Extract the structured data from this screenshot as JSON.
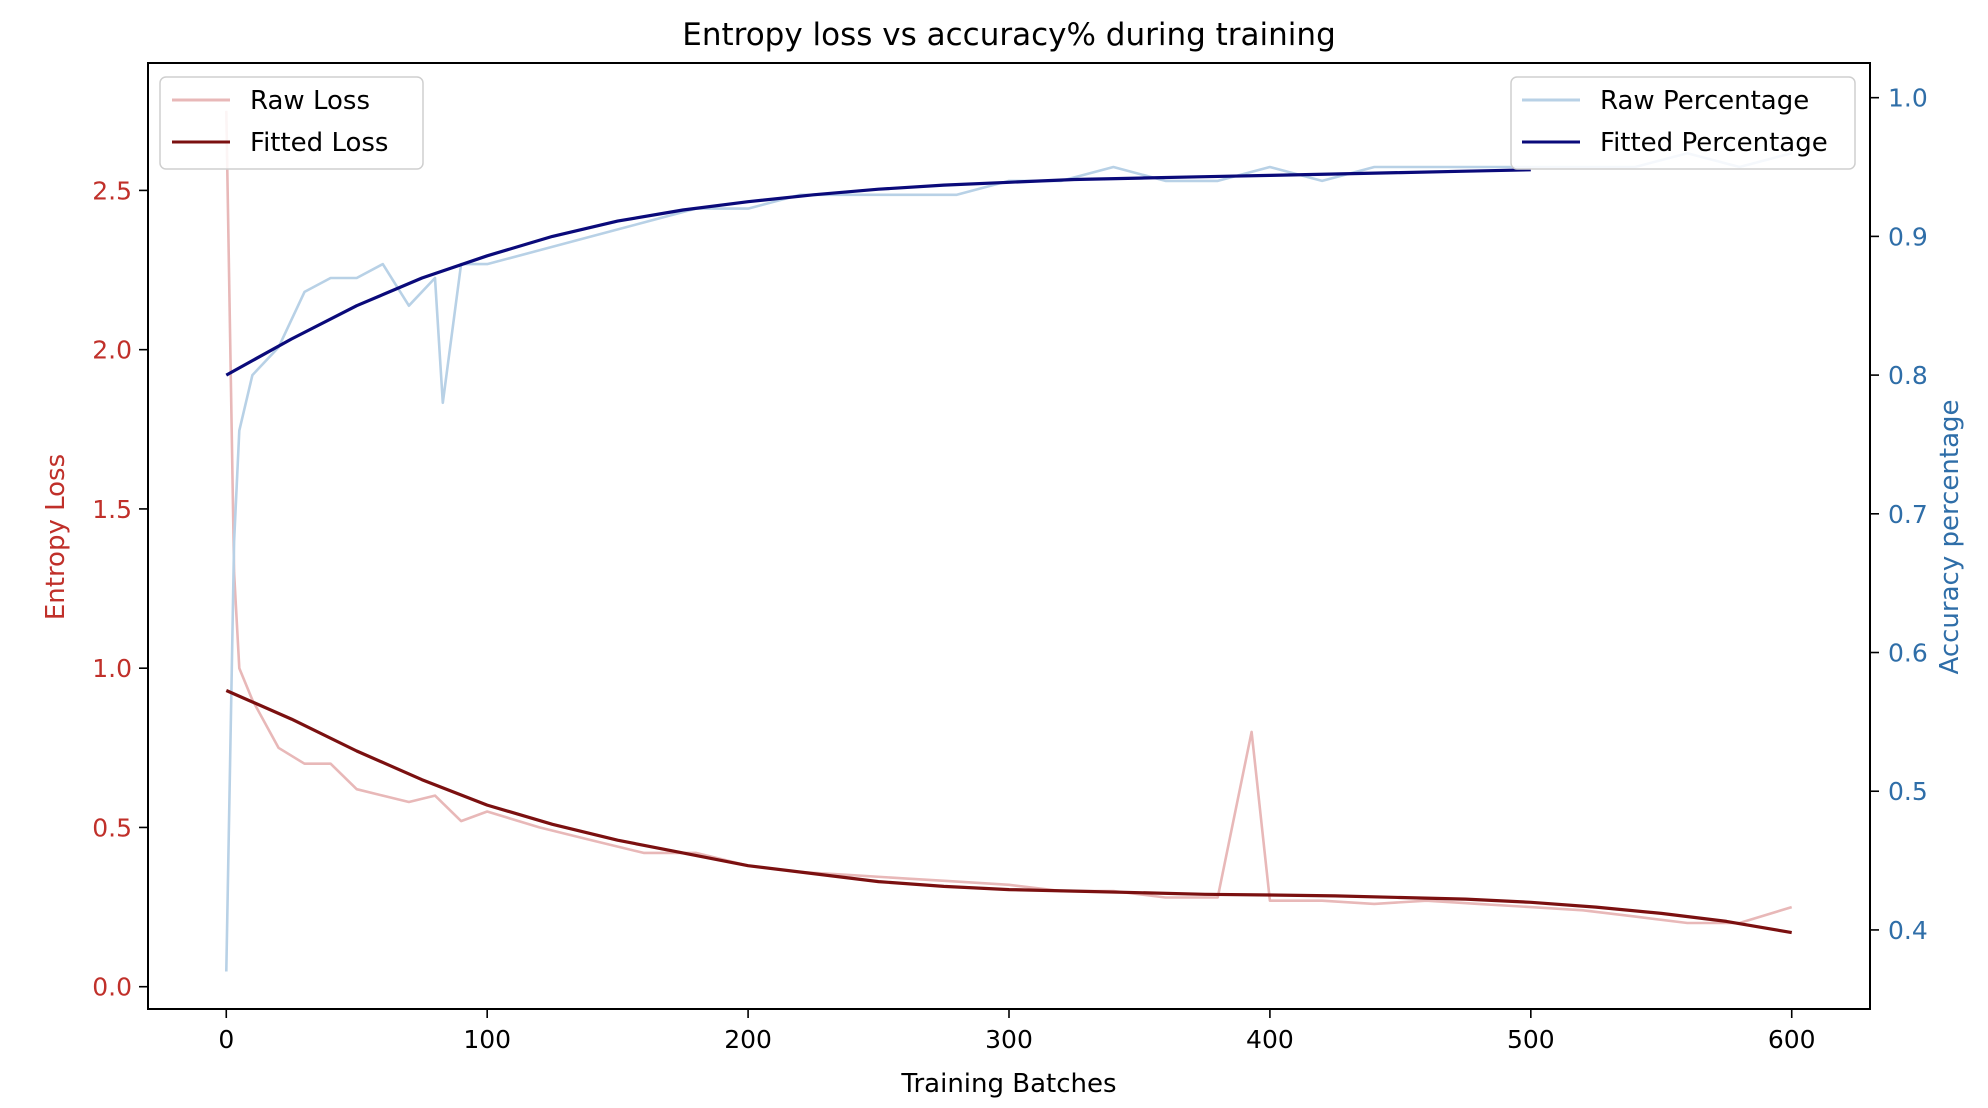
{
  "chart_data": {
    "type": "line",
    "title": "Entropy loss vs accuracy% during training",
    "xlabel": "Training Batches",
    "xlim": [
      -30,
      630
    ],
    "x_ticks": [
      "0",
      "100",
      "200",
      "300",
      "400",
      "500",
      "600"
    ],
    "left_axis": {
      "label": "Entropy Loss",
      "ylim": [
        -0.07,
        2.9
      ],
      "ticks": [
        "0.0",
        "0.5",
        "1.0",
        "1.5",
        "2.0",
        "2.5"
      ],
      "color": "#c0302a"
    },
    "right_axis": {
      "label": "Accuracy percentage",
      "ylim": [
        0.343,
        1.025
      ],
      "ticks": [
        "0.4",
        "0.5",
        "0.6",
        "0.7",
        "0.8",
        "0.9",
        "1.0"
      ],
      "color": "#2f6ea8"
    },
    "legend_left": {
      "position": "top-left",
      "entries": [
        "Raw Loss",
        "Fitted Loss"
      ]
    },
    "legend_right": {
      "position": "top-right",
      "entries": [
        "Raw Percentage",
        "Fitted Percentage"
      ]
    },
    "series": [
      {
        "name": "Raw Loss",
        "axis": "left",
        "color": "#e8b8b8",
        "x": [
          0,
          3,
          5,
          10,
          20,
          30,
          40,
          50,
          60,
          70,
          80,
          90,
          100,
          120,
          140,
          160,
          180,
          200,
          220,
          240,
          260,
          280,
          300,
          320,
          340,
          360,
          380,
          393,
          400,
          420,
          440,
          460,
          480,
          500,
          520,
          540,
          560,
          580,
          600
        ],
        "y": [
          2.75,
          1.3,
          1.0,
          0.9,
          0.75,
          0.7,
          0.7,
          0.62,
          0.6,
          0.58,
          0.6,
          0.52,
          0.55,
          0.5,
          0.46,
          0.42,
          0.42,
          0.38,
          0.36,
          0.35,
          0.34,
          0.33,
          0.32,
          0.3,
          0.3,
          0.28,
          0.28,
          0.8,
          0.27,
          0.27,
          0.26,
          0.27,
          0.26,
          0.25,
          0.24,
          0.22,
          0.2,
          0.2,
          0.25
        ]
      },
      {
        "name": "Fitted Loss",
        "axis": "left",
        "color": "#7b1010",
        "x": [
          0,
          25,
          50,
          75,
          100,
          125,
          150,
          175,
          200,
          225,
          250,
          275,
          300,
          325,
          350,
          375,
          400,
          425,
          450,
          475,
          500,
          525,
          550,
          575,
          600
        ],
        "y": [
          0.93,
          0.84,
          0.74,
          0.65,
          0.57,
          0.51,
          0.46,
          0.42,
          0.38,
          0.355,
          0.33,
          0.315,
          0.305,
          0.3,
          0.295,
          0.29,
          0.288,
          0.285,
          0.28,
          0.275,
          0.265,
          0.25,
          0.23,
          0.205,
          0.17
        ]
      },
      {
        "name": "Raw Percentage",
        "axis": "right",
        "color": "#b8d1e6",
        "x": [
          0,
          3,
          5,
          10,
          20,
          30,
          40,
          50,
          60,
          70,
          80,
          83,
          90,
          100,
          120,
          140,
          160,
          180,
          200,
          220,
          240,
          260,
          280,
          300,
          320,
          340,
          360,
          380,
          400,
          420,
          440,
          460,
          480,
          500,
          520,
          540,
          560,
          580,
          600
        ],
        "y": [
          0.37,
          0.68,
          0.76,
          0.8,
          0.82,
          0.86,
          0.87,
          0.87,
          0.88,
          0.85,
          0.87,
          0.78,
          0.88,
          0.88,
          0.89,
          0.9,
          0.91,
          0.92,
          0.92,
          0.93,
          0.93,
          0.93,
          0.93,
          0.94,
          0.94,
          0.95,
          0.94,
          0.94,
          0.95,
          0.94,
          0.95,
          0.95,
          0.95,
          0.95,
          0.95,
          0.95,
          0.96,
          0.95,
          0.96
        ]
      },
      {
        "name": "Fitted Percentage",
        "axis": "right",
        "color": "#0a0a7a",
        "x": [
          0,
          25,
          50,
          75,
          100,
          125,
          150,
          175,
          200,
          225,
          250,
          275,
          300,
          325,
          350,
          375,
          400,
          425,
          450,
          475,
          500
        ],
        "y": [
          0.8,
          0.826,
          0.85,
          0.87,
          0.886,
          0.9,
          0.911,
          0.919,
          0.925,
          0.93,
          0.934,
          0.937,
          0.939,
          0.941,
          0.942,
          0.943,
          0.944,
          0.945,
          0.946,
          0.947,
          0.948
        ]
      }
    ]
  }
}
